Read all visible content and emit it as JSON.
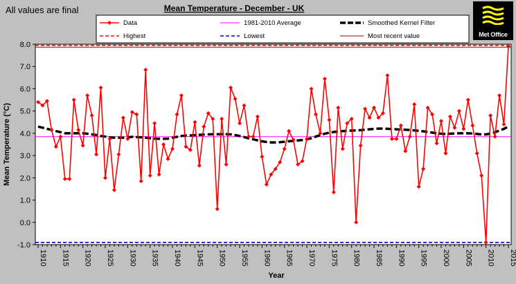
{
  "page_note": "All values are final",
  "brand": {
    "logo_text": "Met Office"
  },
  "colors": {
    "data": "#ff0000",
    "average": "#ff00ff",
    "smoothed": "#000000",
    "highest": "#ff0000",
    "lowest": "#0000cc",
    "recent": "#990000",
    "plot_bg": "#ffffff",
    "page_bg": "#c0c0c0"
  },
  "chart_data": {
    "type": "line",
    "title": "Mean Temperature - December - UK",
    "xlabel": "Year",
    "ylabel": "Mean Temperature (°C)",
    "xlim": [
      1910,
      2015
    ],
    "ylim": [
      -1.0,
      8.0
    ],
    "ytick_step": 1.0,
    "xtick_step": 5,
    "grid": false,
    "legend_position": "top",
    "legend": {
      "data": "Data",
      "average": "1981-2010 Average",
      "smoothed": "Smoothed Kernel Filter",
      "highest": "Highest",
      "lowest": "Lowest",
      "recent": "Most recent value"
    },
    "x_start": 1910,
    "series": [
      {
        "name": "Data",
        "values": [
          5.4,
          5.25,
          5.45,
          4.15,
          3.4,
          3.85,
          1.95,
          1.95,
          5.5,
          4.15,
          3.45,
          5.7,
          4.8,
          3.05,
          6.05,
          2.0,
          3.75,
          1.45,
          3.05,
          4.7,
          3.75,
          4.95,
          4.85,
          1.85,
          6.85,
          2.1,
          4.45,
          2.15,
          3.5,
          2.85,
          3.3,
          4.85,
          5.7,
          3.4,
          3.25,
          4.5,
          2.55,
          4.3,
          4.9,
          4.65,
          0.6,
          4.65,
          2.6,
          6.05,
          5.55,
          4.45,
          5.25,
          3.85,
          3.85,
          4.75,
          2.95,
          1.7,
          2.15,
          2.4,
          2.7,
          3.3,
          4.1,
          3.7,
          2.6,
          2.75,
          3.75,
          6.0,
          4.85,
          4.0,
          6.45,
          4.6,
          1.35,
          5.15,
          3.3,
          4.45,
          4.65,
          0.0,
          3.45,
          5.1,
          4.7,
          5.15,
          4.7,
          4.9,
          6.6,
          3.75,
          3.75,
          4.35,
          3.2,
          3.85,
          5.3,
          1.6,
          2.4,
          5.15,
          4.85,
          3.55,
          4.55,
          3.1,
          4.75,
          4.25,
          5.0,
          4.2,
          5.5,
          4.35,
          3.1,
          2.1,
          -0.9,
          4.8,
          3.85,
          5.7,
          4.4,
          7.9
        ]
      },
      {
        "name": "Smoothed Kernel Filter",
        "values": [
          4.3,
          4.25,
          4.2,
          4.15,
          4.1,
          4.05,
          4.0,
          4.0,
          4.0,
          4.0,
          4.0,
          3.98,
          3.95,
          3.92,
          3.88,
          3.85,
          3.82,
          3.8,
          3.8,
          3.8,
          3.82,
          3.84,
          3.83,
          3.82,
          3.8,
          3.78,
          3.76,
          3.75,
          3.75,
          3.76,
          3.8,
          3.84,
          3.88,
          3.9,
          3.9,
          3.92,
          3.93,
          3.94,
          3.95,
          3.96,
          3.96,
          3.96,
          3.96,
          3.95,
          3.92,
          3.88,
          3.83,
          3.78,
          3.73,
          3.68,
          3.64,
          3.61,
          3.59,
          3.59,
          3.6,
          3.62,
          3.64,
          3.66,
          3.68,
          3.7,
          3.73,
          3.78,
          3.85,
          3.92,
          3.98,
          4.03,
          4.06,
          4.08,
          4.1,
          4.11,
          4.12,
          4.13,
          4.14,
          4.16,
          4.18,
          4.2,
          4.21,
          4.21,
          4.2,
          4.19,
          4.18,
          4.17,
          4.16,
          4.15,
          4.13,
          4.11,
          4.09,
          4.06,
          4.03,
          4.0,
          3.98,
          3.97,
          3.98,
          3.99,
          4.0,
          4.0,
          4.0,
          3.99,
          3.97,
          3.95,
          3.95,
          3.99,
          4.05,
          4.12,
          4.2,
          4.3
        ]
      }
    ],
    "average": 3.85,
    "highest": 7.9,
    "lowest": -0.9,
    "most_recent": 7.9
  }
}
